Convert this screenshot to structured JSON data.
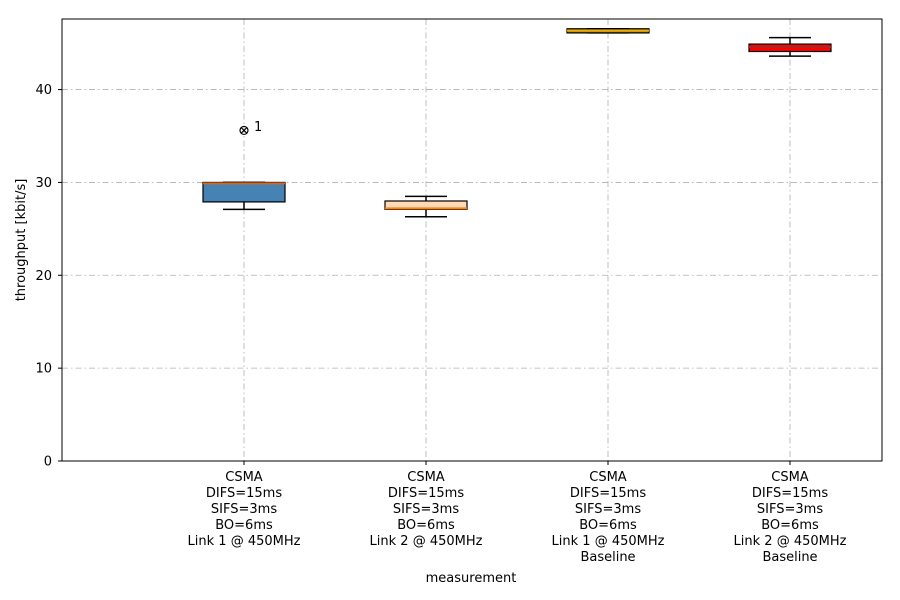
{
  "chart_data": {
    "type": "boxplot",
    "xlabel": "measurement",
    "ylabel": "throughput [kbit/s]",
    "ylim": [
      0,
      47.6
    ],
    "yticks": [
      0,
      10,
      20,
      30,
      40
    ],
    "grid": true,
    "categories": [
      [
        "CSMA",
        "DIFS=15ms",
        "SIFS=3ms",
        "BO=6ms",
        "Link 1 @ 450MHz"
      ],
      [
        "CSMA",
        "DIFS=15ms",
        "SIFS=3ms",
        "BO=6ms",
        "Link 2 @ 450MHz"
      ],
      [
        "CSMA",
        "DIFS=15ms",
        "SIFS=3ms",
        "BO=6ms",
        "Link 1 @ 450MHz",
        "Baseline"
      ],
      [
        "CSMA",
        "DIFS=15ms",
        "SIFS=3ms",
        "BO=6ms",
        "Link 2 @ 450MHz",
        "Baseline"
      ]
    ],
    "boxes": [
      {
        "whisker_low": 27.1,
        "q1": 27.9,
        "median": 29.9,
        "q3": 30.0,
        "whisker_high": 30.0,
        "fill": "#4682b4",
        "median_color": "#d2691e"
      },
      {
        "whisker_low": 26.3,
        "q1": 27.1,
        "median": 27.2,
        "q3": 28.0,
        "whisker_high": 28.5,
        "fill": "#ffdab9",
        "median_color": "#ff7f0e"
      },
      {
        "whisker_low": 46.1,
        "q1": 46.1,
        "median": 46.35,
        "q3": 46.55,
        "whisker_high": 46.55,
        "fill": "#6b8e23",
        "median_color": "#ffa500"
      },
      {
        "whisker_low": 43.6,
        "q1": 44.1,
        "median": 44.6,
        "q3": 44.9,
        "whisker_high": 45.6,
        "fill": "#ff0000",
        "median_color": "#b22222"
      }
    ],
    "outliers": [
      {
        "box": 0,
        "value": 35.6,
        "label": "1"
      }
    ]
  }
}
